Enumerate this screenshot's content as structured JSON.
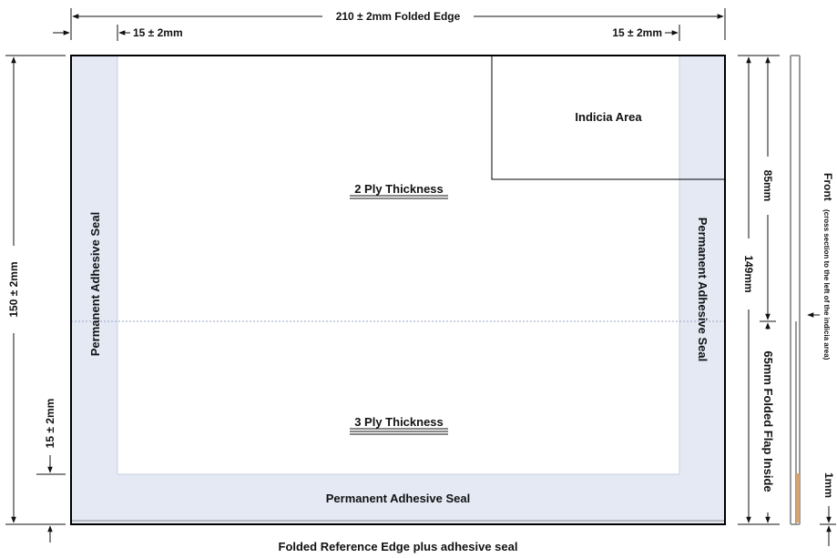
{
  "colors": {
    "seal": "#e4e9f4",
    "outline": "#000000",
    "dim_line": "#111111",
    "fold_line": "#9aa6c8",
    "adhesive_strip": "#d6a36c",
    "cross_section": "#9a9a9a"
  },
  "dimensions": {
    "top_width": "210 ± 2mm Folded Edge",
    "left_margin": "15 ± 2mm",
    "right_margin": "15 ± 2mm",
    "height": "150 ± 2mm",
    "bottom_margin": "15 ± 2mm",
    "indicia_height": "85mm",
    "inner_height": "149mm",
    "flap_height": "65mm Folded Flap Inside",
    "seal_thickness": "1mm"
  },
  "labels": {
    "indicia_area": "Indicia Area",
    "two_ply": "2 Ply Thickness",
    "three_ply": "3 Ply Thickness",
    "seal_left": "Permanent Adhesive Seal",
    "seal_right": "Permanent Adhesive Seal",
    "seal_bottom": "Permanent Adhesive Seal",
    "bottom_caption": "Folded Reference Edge plus adhesive seal"
  },
  "cross_section": {
    "title": "Front",
    "note": "(cross section to the left of the indicia area)"
  }
}
